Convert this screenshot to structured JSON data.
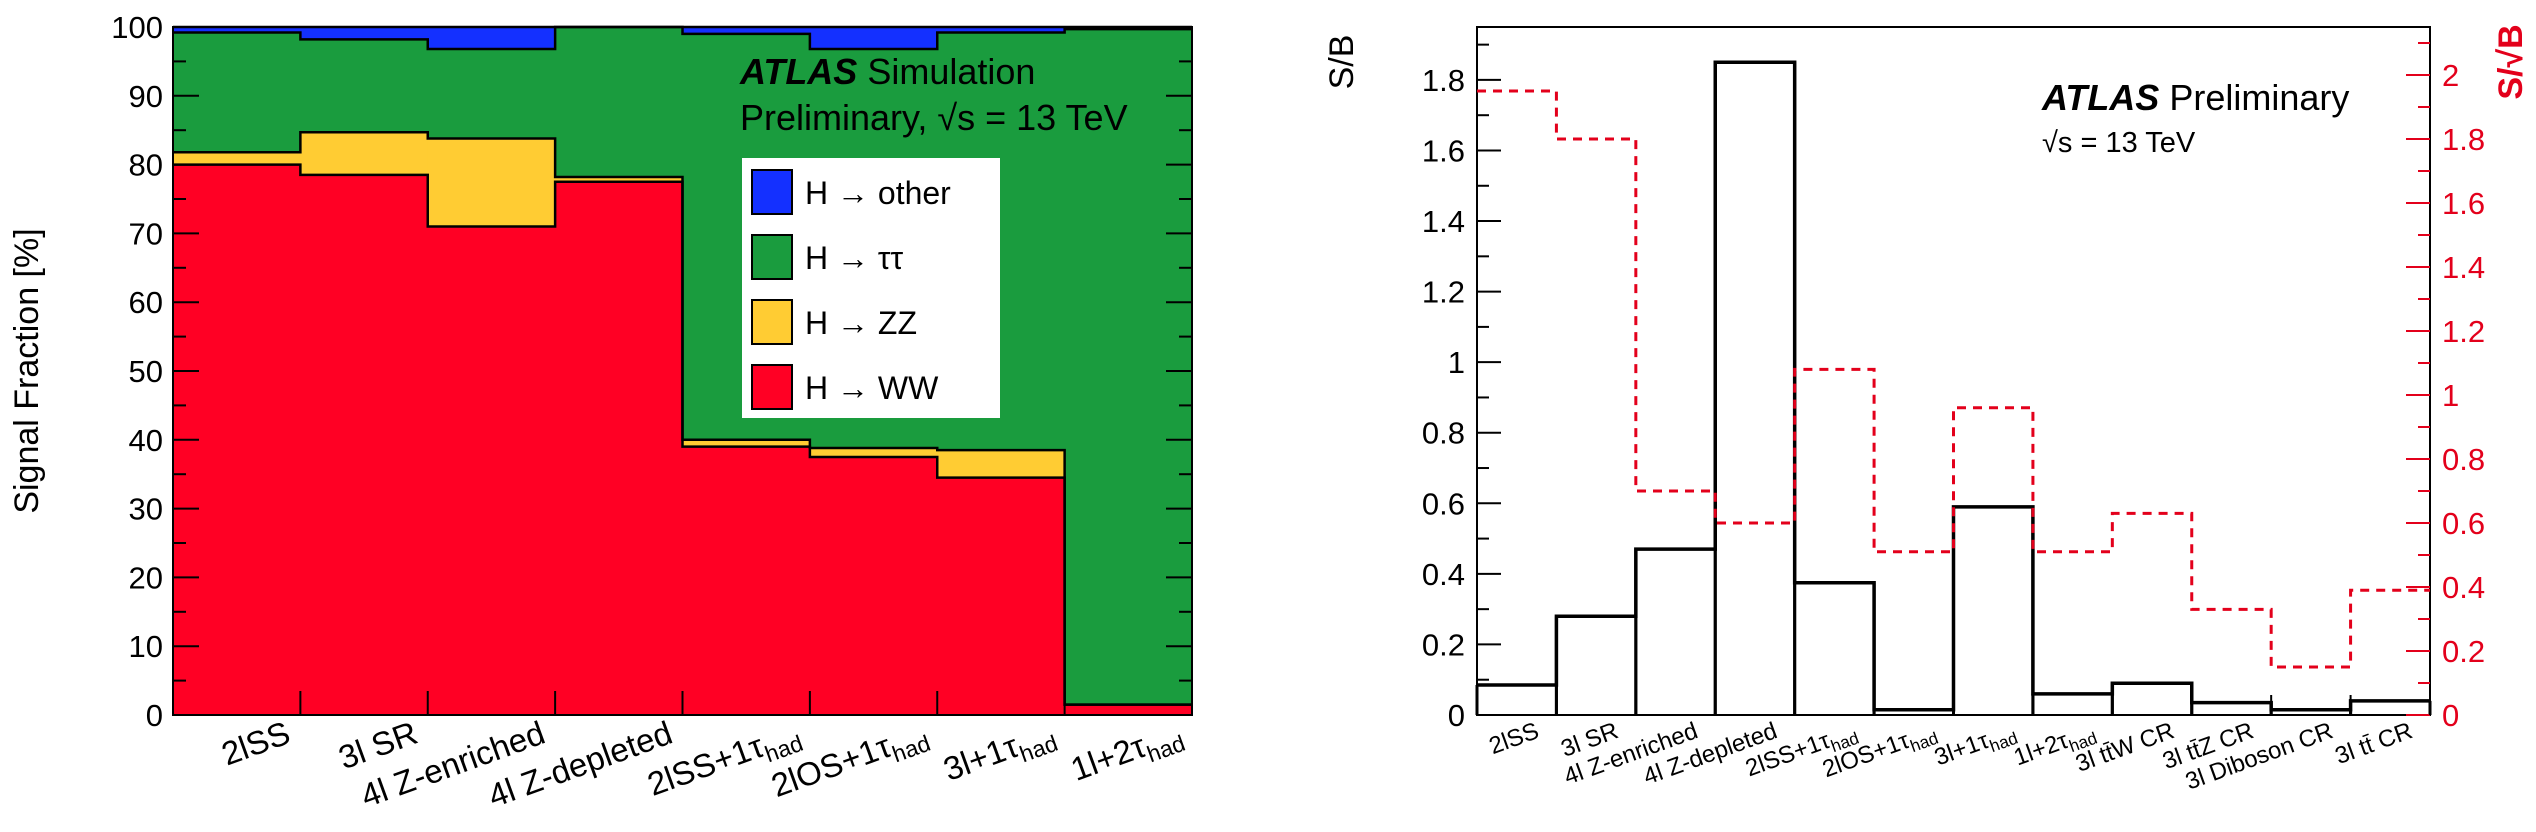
{
  "chart_data": [
    {
      "type": "stacked_bar",
      "ylabel": "Signal Fraction [%]",
      "ylim": [
        0,
        100
      ],
      "yticks": [
        0,
        10,
        20,
        30,
        40,
        50,
        60,
        70,
        80,
        90,
        100
      ],
      "header": {
        "atlas": "ATLAS",
        "line1": "Simulation",
        "line2": "Preliminary,",
        "energy": "√s = 13 TeV"
      },
      "categories": [
        {
          "main": "2lSS",
          "sub": ""
        },
        {
          "main": "3l SR",
          "sub": ""
        },
        {
          "main": "4l Z-enriched",
          "sub": ""
        },
        {
          "main": "4l Z-depleted",
          "sub": ""
        },
        {
          "main": "2lSS+1τ",
          "sub": "had"
        },
        {
          "main": "2lOS+1τ",
          "sub": "had"
        },
        {
          "main": "3l+1τ",
          "sub": "had"
        },
        {
          "main": "1l+2τ",
          "sub": "had"
        }
      ],
      "series": [
        {
          "name": "H → WW",
          "color": "#ff0024",
          "values": [
            80.0,
            78.5,
            71.0,
            77.5,
            39.0,
            37.5,
            34.5,
            1.5
          ]
        },
        {
          "name": "H → ZZ",
          "color": "#ffcc33",
          "values": [
            1.8,
            6.2,
            12.8,
            0.7,
            1.0,
            1.3,
            4.0,
            0.0
          ]
        },
        {
          "name": "H → ττ",
          "color": "#1a9c3e",
          "values": [
            17.4,
            13.5,
            13.0,
            21.8,
            59.0,
            58.0,
            60.7,
            98.2
          ]
        },
        {
          "name": "H → other",
          "color": "#1430ff",
          "values": [
            0.8,
            1.8,
            3.2,
            0.0,
            1.0,
            3.2,
            0.8,
            0.3
          ]
        }
      ],
      "legend_placement": "upper-middle",
      "legend_order": [
        "H → other",
        "H → ττ",
        "H → ZZ",
        "H → WW"
      ]
    },
    {
      "type": "step",
      "ylabel": "S/B",
      "ylabel_right": "S/√B",
      "ylim": [
        0,
        1.95
      ],
      "ylim_right": [
        0,
        2.15
      ],
      "yticks": [
        0,
        0.2,
        0.4,
        0.6,
        0.8,
        1,
        1.2,
        1.4,
        1.6,
        1.8
      ],
      "yticks_right": [
        0,
        0.2,
        0.4,
        0.6,
        0.8,
        1,
        1.2,
        1.4,
        1.6,
        1.8,
        2
      ],
      "header": {
        "atlas": "ATLAS",
        "line1": "Preliminary",
        "energy": "√s = 13 TeV"
      },
      "categories": [
        {
          "main": "2lSS",
          "sub": ""
        },
        {
          "main": "3l SR",
          "sub": ""
        },
        {
          "main": "4l Z-enriched",
          "sub": ""
        },
        {
          "main": "4l Z-depleted",
          "sub": ""
        },
        {
          "main": "2lSS+1τ",
          "sub": "had"
        },
        {
          "main": "2lOS+1τ",
          "sub": "had"
        },
        {
          "main": "3l+1τ",
          "sub": "had"
        },
        {
          "main": "1l+2τ",
          "sub": "had"
        },
        {
          "main": "3l tt̄W CR",
          "sub": ""
        },
        {
          "main": "3l tt̄Z CR",
          "sub": ""
        },
        {
          "main": "3l Diboson CR",
          "sub": ""
        },
        {
          "main": "3l tt̄ CR",
          "sub": ""
        }
      ],
      "series": [
        {
          "name": "S/B",
          "axis": "left",
          "color": "#000000",
          "style": "solid",
          "values": [
            0.085,
            0.28,
            0.47,
            1.85,
            0.375,
            0.015,
            0.59,
            0.06,
            0.09,
            0.035,
            0.015,
            0.04
          ]
        },
        {
          "name": "S/√B",
          "axis": "right",
          "color": "#e3001b",
          "style": "dashed",
          "values": [
            1.95,
            1.8,
            0.7,
            0.6,
            1.08,
            0.51,
            0.96,
            0.51,
            0.63,
            0.33,
            0.15,
            0.39
          ]
        }
      ]
    }
  ]
}
